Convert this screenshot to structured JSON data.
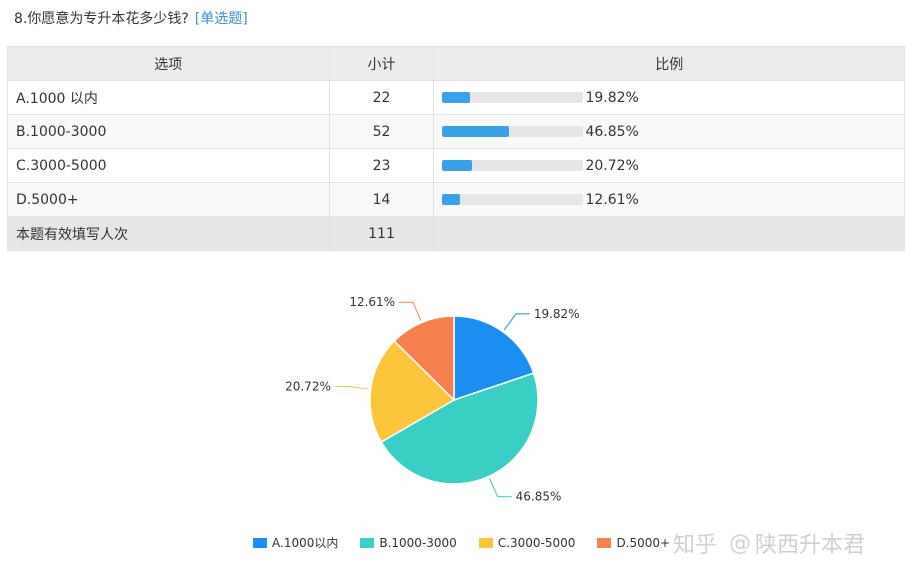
{
  "question": {
    "title": "8.你愿意为专升本花多少钱?",
    "type_label": "[单选题]"
  },
  "table": {
    "headers": {
      "option": "选项",
      "count": "小计",
      "ratio": "比例"
    },
    "rows": [
      {
        "option": "A.1000 以内",
        "count": "22",
        "ratio": 0.1982,
        "ratio_text": "19.82%"
      },
      {
        "option": "B.1000-3000",
        "count": "52",
        "ratio": 0.4685,
        "ratio_text": "46.85%"
      },
      {
        "option": "C.3000-5000",
        "count": "23",
        "ratio": 0.2072,
        "ratio_text": "20.72%"
      },
      {
        "option": "D.5000+",
        "count": "14",
        "ratio": 0.1261,
        "ratio_text": "12.61%"
      }
    ],
    "total": {
      "label": "本题有效填写人次",
      "count": "111"
    },
    "bar_color": "#3aa0e8"
  },
  "chart_data": {
    "type": "pie",
    "categories": [
      "A.1000以内",
      "B.1000-3000",
      "C.3000-5000",
      "D.5000+"
    ],
    "values": [
      19.82,
      46.85,
      20.72,
      12.61
    ],
    "data_labels": [
      "19.82%",
      "46.85%",
      "20.72%",
      "12.61%"
    ],
    "colors": [
      "#1b8ef0",
      "#3acfc5",
      "#fcc53b",
      "#f5824e"
    ],
    "legend_position": "bottom"
  },
  "watermark": {
    "site": "知乎",
    "at": "@",
    "author": "陕西升本君"
  }
}
